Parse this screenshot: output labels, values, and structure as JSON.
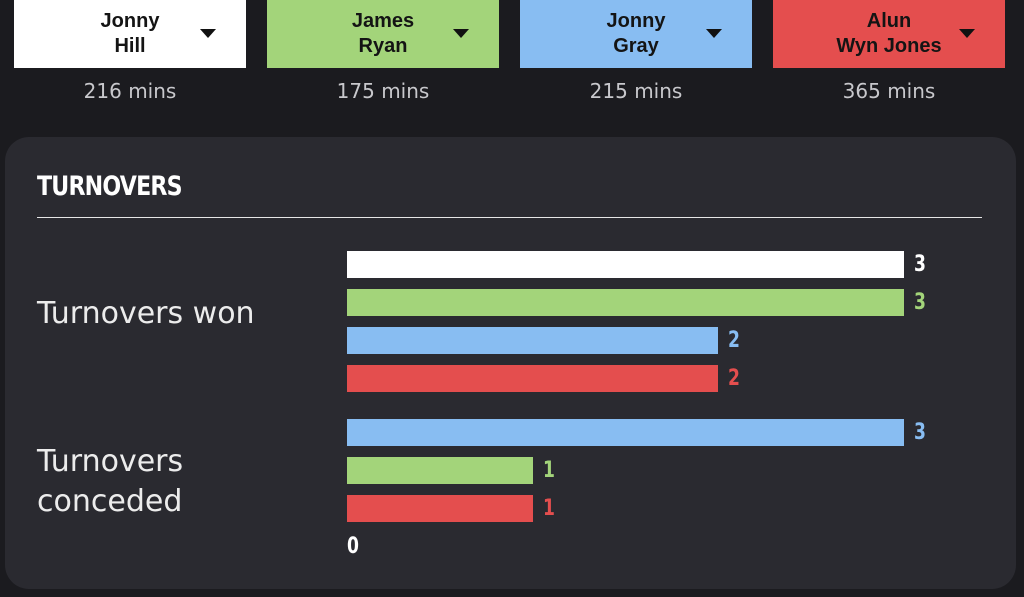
{
  "players": [
    {
      "name": "Jonny\nHill",
      "minutes": "216 mins",
      "color": "#ffffff"
    },
    {
      "name": "James\nRyan",
      "minutes": "175 mins",
      "color": "#a3d47a"
    },
    {
      "name": "Jonny\nGray",
      "minutes": "215 mins",
      "color": "#88bdf2"
    },
    {
      "name": "Alun\nWyn Jones",
      "minutes": "365 mins",
      "color": "#e44e4e"
    }
  ],
  "section": {
    "title": "Turnovers"
  },
  "stats": [
    {
      "label": "Turnovers won",
      "bars": [
        {
          "value": "3",
          "color": "#ffffff"
        },
        {
          "value": "3",
          "color": "#a3d47a"
        },
        {
          "value": "2",
          "color": "#88bdf2"
        },
        {
          "value": "2",
          "color": "#e44e4e"
        }
      ]
    },
    {
      "label": "Turnovers\nconceded",
      "bars": [
        {
          "value": "3",
          "color": "#88bdf2"
        },
        {
          "value": "1",
          "color": "#a3d47a"
        },
        {
          "value": "1",
          "color": "#e44e4e"
        },
        {
          "value": "0",
          "color": "#ffffff"
        }
      ]
    }
  ],
  "max_value": 3
}
